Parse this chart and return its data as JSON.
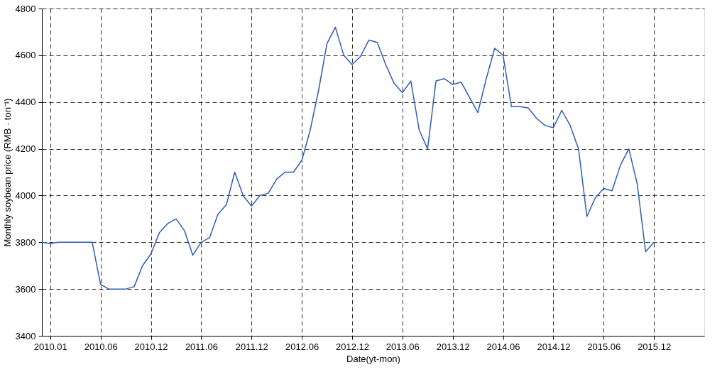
{
  "chart_data": {
    "type": "line",
    "xlabel": "Date(yt-mon)",
    "ylabel": "Monthly soybean price (RMB · ton⁻¹)",
    "categories": [
      null,
      "2010.01",
      null,
      null,
      null,
      null,
      null,
      "2010.06",
      null,
      null,
      null,
      null,
      null,
      "2010.12",
      null,
      null,
      null,
      null,
      null,
      "2011.06",
      null,
      null,
      null,
      null,
      null,
      "2011.12",
      null,
      null,
      null,
      null,
      null,
      "2012.06",
      null,
      null,
      null,
      null,
      null,
      "2012.12",
      null,
      null,
      null,
      null,
      null,
      "2013.06",
      null,
      null,
      null,
      null,
      null,
      "2013.12",
      null,
      null,
      null,
      null,
      null,
      "2014.06",
      null,
      null,
      null,
      null,
      null,
      "2014.12",
      null,
      null,
      null,
      null,
      null,
      "2015.06",
      null,
      null,
      null,
      null,
      null,
      "2015.12"
    ],
    "series": [
      {
        "color": "#2e5cb8",
        "values": [
          3800,
          3795,
          3800,
          3800,
          3800,
          3800,
          3800,
          3620,
          3600,
          3600,
          3600,
          3610,
          3700,
          3750,
          3840,
          3880,
          3900,
          3850,
          3745,
          3800,
          3820,
          3920,
          3960,
          4100,
          4000,
          3955,
          4000,
          4010,
          4070,
          4100,
          4100,
          4150,
          4280,
          4450,
          4650,
          4720,
          4600,
          4560,
          4595,
          4665,
          4655,
          4560,
          4480,
          4440,
          4490,
          4280,
          4200,
          4490,
          4500,
          4475,
          4485,
          4420,
          4355,
          4500,
          4630,
          4600,
          4380,
          4380,
          4375,
          4330,
          4300,
          4290,
          4365,
          4300,
          4200,
          3910,
          3990,
          4030,
          4020,
          4130,
          4200,
          4050,
          3760,
          3800
        ]
      }
    ],
    "ylim": [
      3400,
      4800
    ],
    "yticks": [
      3400,
      3600,
      3800,
      4000,
      4200,
      4400,
      4600,
      4800
    ],
    "grid": true,
    "marker": "none",
    "line_style": "solid"
  }
}
